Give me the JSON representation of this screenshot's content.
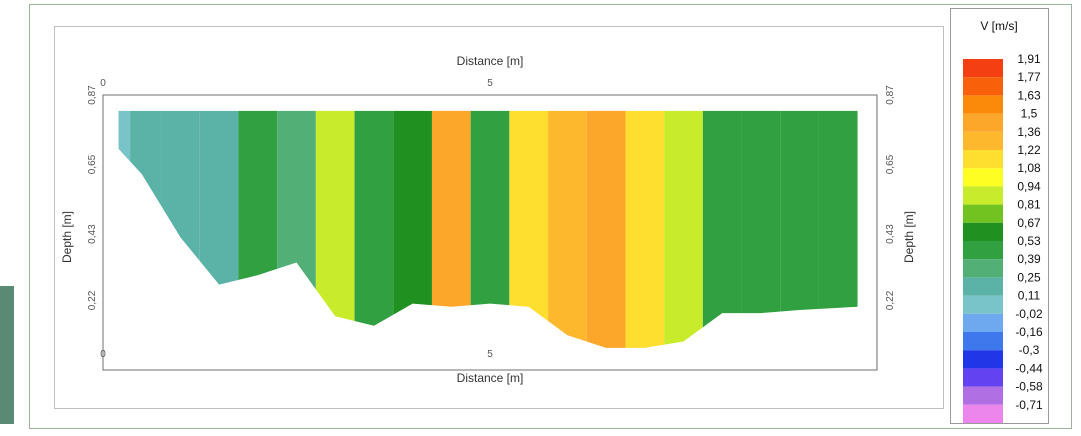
{
  "chart_data": {
    "type": "heatmap",
    "title": "",
    "xlabel": "Distance [m]",
    "ylabel": "Depth [m]",
    "xlim": [
      0,
      10
    ],
    "ylim": [
      0.87,
      0
    ],
    "x_ticks": [
      "0",
      "5"
    ],
    "y_ticks": [
      "0,87",
      "0,65",
      "0,43",
      "0,22"
    ],
    "grid": false,
    "legend": {
      "title": "V [m/s]",
      "placement": "right",
      "levels": [
        "1,91",
        "1,77",
        "1,63",
        "1,5",
        "1,36",
        "1,22",
        "1,08",
        "0,94",
        "0,81",
        "0,67",
        "0,53",
        "0,39",
        "0,25",
        "0,11",
        "-0,02",
        "-0,16",
        "-0,3",
        "-0,44",
        "-0,58",
        "-0,71"
      ],
      "colors": [
        "#f33f11",
        "#f8610a",
        "#fb8a0a",
        "#fca62a",
        "#feb82e",
        "#fede2e",
        "#fefe22",
        "#c8ec2c",
        "#72c320",
        "#209020",
        "#30a040",
        "#52af75",
        "#5ab3a6",
        "#79c4c8",
        "#6ea8ee",
        "#3f78ec",
        "#2136e6",
        "#6242f1",
        "#b070e3",
        "#ec86ec"
      ]
    },
    "series": [
      {
        "x": [
          0.2,
          0.5,
          1.0,
          1.5,
          2.0,
          2.5,
          3.0,
          3.5,
          4.0,
          4.5,
          5.0,
          5.5,
          6.0,
          6.5,
          7.0,
          7.5,
          8.0,
          8.5,
          9.0,
          9.5
        ],
        "bottom_depth": [
          0.7,
          0.62,
          0.42,
          0.27,
          0.3,
          0.34,
          0.17,
          0.14,
          0.21,
          0.2,
          0.21,
          0.2,
          0.11,
          0.07,
          0.07,
          0.09,
          0.18,
          0.18,
          0.19,
          0.2
        ],
        "velocity": [
          0.22,
          0.36,
          0.38,
          0.38,
          0.55,
          0.45,
          1.0,
          0.6,
          0.67,
          1.5,
          0.65,
          1.3,
          1.4,
          1.55,
          1.3,
          1.0,
          0.53,
          0.55,
          0.57,
          0.6
        ]
      }
    ]
  }
}
